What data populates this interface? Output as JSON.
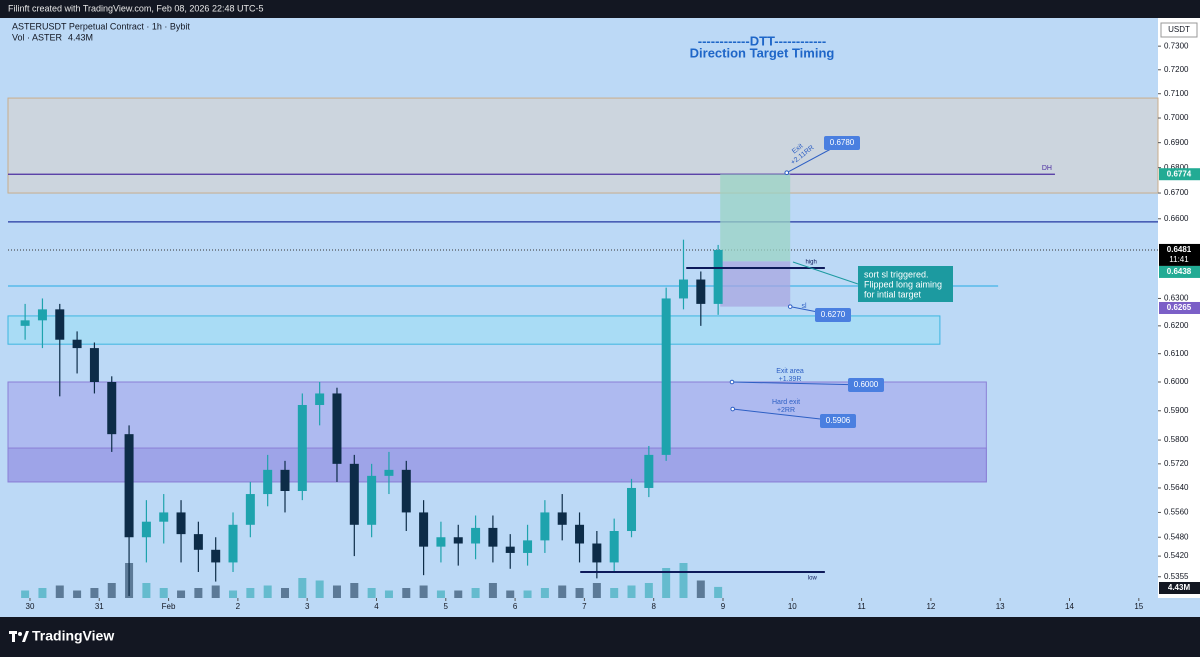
{
  "header": {
    "attribution": "Filinft created with TradingView.com, Feb 08, 2026 22:48 UTC-5"
  },
  "chart_data": {
    "type": "candlestick",
    "title": "ASTERUSDT Perpetual Contract · 1h · Bybit",
    "currency": "USDT",
    "heading": [
      "------------DTT------------",
      "Direction Target Timing"
    ],
    "up_color": "#1ea3ad",
    "down_color": "#0d2c48",
    "background": "#bcd9f6",
    "log_scale": true,
    "x": [
      -0.07,
      0.18,
      0.43,
      0.68,
      0.93,
      1.18,
      1.43,
      1.68,
      1.93,
      2.18,
      2.43,
      2.68,
      2.93,
      3.18,
      3.43,
      3.68,
      3.93,
      4.18,
      4.43,
      4.68,
      4.93,
      5.18,
      5.43,
      5.68,
      5.93,
      6.18,
      6.43,
      6.68,
      6.93,
      7.18,
      7.43,
      7.68,
      7.93,
      8.18,
      8.43,
      8.68,
      8.93,
      9.18,
      9.43,
      9.68,
      9.93
    ],
    "open": [
      0.62,
      0.622,
      0.626,
      0.615,
      0.612,
      0.6,
      0.582,
      0.548,
      0.553,
      0.556,
      0.549,
      0.544,
      0.54,
      0.552,
      0.562,
      0.57,
      0.563,
      0.592,
      0.596,
      0.572,
      0.552,
      0.568,
      0.57,
      0.556,
      0.545,
      0.548,
      0.546,
      0.551,
      0.545,
      0.543,
      0.547,
      0.556,
      0.552,
      0.546,
      0.54,
      0.55,
      0.564,
      0.575,
      0.63,
      0.637,
      0.628
    ],
    "high": [
      0.628,
      0.63,
      0.628,
      0.618,
      0.614,
      0.602,
      0.585,
      0.56,
      0.562,
      0.56,
      0.553,
      0.548,
      0.556,
      0.566,
      0.575,
      0.573,
      0.596,
      0.6,
      0.598,
      0.575,
      0.572,
      0.576,
      0.573,
      0.56,
      0.553,
      0.552,
      0.555,
      0.555,
      0.549,
      0.552,
      0.56,
      0.562,
      0.556,
      0.55,
      0.554,
      0.567,
      0.578,
      0.634,
      0.652,
      0.64,
      0.65
    ],
    "low": [
      0.615,
      0.612,
      0.595,
      0.603,
      0.596,
      0.576,
      0.5295,
      0.54,
      0.546,
      0.54,
      0.537,
      0.534,
      0.537,
      0.548,
      0.558,
      0.556,
      0.56,
      0.585,
      0.566,
      0.542,
      0.548,
      0.562,
      0.55,
      0.536,
      0.54,
      0.539,
      0.541,
      0.54,
      0.538,
      0.539,
      0.543,
      0.547,
      0.54,
      0.535,
      0.537,
      0.548,
      0.561,
      0.573,
      0.626,
      0.62,
      0.624
    ],
    "close": [
      0.622,
      0.626,
      0.615,
      0.612,
      0.6,
      0.582,
      0.548,
      0.553,
      0.556,
      0.549,
      0.544,
      0.54,
      0.552,
      0.562,
      0.57,
      0.563,
      0.592,
      0.596,
      0.572,
      0.552,
      0.568,
      0.57,
      0.556,
      0.545,
      0.548,
      0.546,
      0.551,
      0.545,
      0.543,
      0.547,
      0.556,
      0.552,
      0.546,
      0.54,
      0.55,
      0.564,
      0.575,
      0.63,
      0.637,
      0.628,
      0.6481
    ],
    "volume": {
      "name": "Vol · ASTER",
      "ylim": [
        0,
        40
      ],
      "values": [
        3,
        4,
        5,
        3,
        4,
        6,
        14,
        6,
        4,
        3,
        4,
        5,
        3,
        4,
        5,
        4,
        8,
        7,
        5,
        6,
        4,
        3,
        4,
        5,
        3,
        3,
        4,
        6,
        3,
        3,
        4,
        5,
        4,
        6,
        4,
        5,
        6,
        12,
        14,
        7,
        4.43
      ],
      "value_labels": [
        null,
        null,
        null,
        null,
        null,
        null,
        null,
        null,
        null,
        null,
        null,
        null,
        null,
        null,
        null,
        null,
        null,
        null,
        null,
        null,
        null,
        null,
        null,
        null,
        null,
        null,
        null,
        null,
        null,
        null,
        null,
        null,
        null,
        null,
        null,
        null,
        null,
        null,
        null,
        null,
        "4.43M"
      ]
    },
    "xlim": [
      -0.317,
      16.277
    ],
    "xticks": [
      {
        "value": 0,
        "label": "30"
      },
      {
        "value": 1,
        "label": "31"
      },
      {
        "value": 2,
        "label": "Feb"
      },
      {
        "value": 3,
        "label": "2"
      },
      {
        "value": 4,
        "label": "3"
      },
      {
        "value": 5,
        "label": "4"
      },
      {
        "value": 6,
        "label": "5"
      },
      {
        "value": 7,
        "label": "6"
      },
      {
        "value": 8,
        "label": "7"
      },
      {
        "value": 9,
        "label": "8"
      },
      {
        "value": 10,
        "label": "9"
      },
      {
        "value": 11,
        "label": "10"
      },
      {
        "value": 12,
        "label": "11"
      },
      {
        "value": 13,
        "label": "12"
      },
      {
        "value": 14,
        "label": "13"
      },
      {
        "value": 15,
        "label": "14"
      },
      {
        "value": 16,
        "label": "15"
      }
    ],
    "ylim": [
      0.5289,
      0.7421
    ],
    "yticks": [
      {
        "value": 0.73,
        "label": "0.7300"
      },
      {
        "value": 0.72,
        "label": "0.7200"
      },
      {
        "value": 0.71,
        "label": "0.7100"
      },
      {
        "value": 0.7,
        "label": "0.7000"
      },
      {
        "value": 0.69,
        "label": "0.6900"
      },
      {
        "value": 0.68,
        "label": "0.6800"
      },
      {
        "value": 0.67,
        "label": "0.6700"
      },
      {
        "value": 0.66,
        "label": "0.6600"
      },
      {
        "value": 0.63,
        "label": "0.6300"
      },
      {
        "value": 0.62,
        "label": "0.6200"
      },
      {
        "value": 0.61,
        "label": "0.6100"
      },
      {
        "value": 0.6,
        "label": "0.6000"
      },
      {
        "value": 0.59,
        "label": "0.5900"
      },
      {
        "value": 0.58,
        "label": "0.5800"
      },
      {
        "value": 0.572,
        "label": "0.5720"
      },
      {
        "value": 0.564,
        "label": "0.5640"
      },
      {
        "value": 0.556,
        "label": "0.5560"
      },
      {
        "value": 0.548,
        "label": "0.5480"
      },
      {
        "value": 0.542,
        "label": "0.5420"
      },
      {
        "value": 0.5355,
        "label": "0.5355"
      }
    ],
    "price_labels": [
      {
        "value": 0.6774,
        "label": "0.6774",
        "color": "#22ab94"
      },
      {
        "value": 0.6481,
        "label": "0.6481",
        "sub": "11:41",
        "color": "#000000"
      },
      {
        "value": 0.6438,
        "label": "0.6438",
        "color": "#22ab94"
      },
      {
        "value": 0.6265,
        "label": "0.6265",
        "color": "#7b5fc7"
      }
    ],
    "zones": [
      {
        "from": 0.7082,
        "to": 0.67,
        "x0": -0.317,
        "x1": 16.277,
        "color": "#cfd3d9",
        "border": "#c9ad8c"
      },
      {
        "from": 0.6236,
        "to": 0.6134,
        "x0": -0.317,
        "x1": 13.13,
        "color": "#a6dcf5",
        "border": "#3cb6e0"
      },
      {
        "from": 0.6,
        "to": 0.566,
        "x0": -0.317,
        "x1": 13.8,
        "color": "#abb4ef",
        "border": "#8a7fd6"
      },
      {
        "from": 0.5773,
        "to": 0.566,
        "x0": -0.317,
        "x1": 13.8,
        "color": "#9ba0e6",
        "border": "#8a7fd6"
      }
    ],
    "levels": [
      {
        "value": 0.6774,
        "label": "DH",
        "x1": 14.79,
        "color": "#4b2ea0"
      },
      {
        "value": 0.6588,
        "color": "#2438a0"
      },
      {
        "value": 0.6481,
        "dash": true,
        "color": "#333333"
      },
      {
        "value": 0.6346,
        "x1": 13.97,
        "color": "#42b4e8"
      }
    ],
    "position": {
      "target": 0.6774,
      "entry": 0.6438,
      "stop": 0.627,
      "x0": 9.96,
      "x1": 10.97
    },
    "markers": [
      {
        "label": "high",
        "value": 0.6413,
        "x0": 9.47,
        "x1": 11.47
      },
      {
        "label": "low",
        "value": 0.537,
        "x0": 7.94,
        "x1": 11.47
      }
    ],
    "targets": [
      {
        "note": [
          "Exit",
          "+2.11RR"
        ],
        "value": 0.678,
        "label": "0.6780",
        "x": 10.92
      },
      {
        "note": [
          "sl"
        ],
        "value": 0.627,
        "label": "0.6270",
        "x": 10.97
      },
      {
        "note": [
          "Exit area",
          "+1.39R"
        ],
        "value": 0.6,
        "label": "0.6000",
        "x": 10.13
      },
      {
        "note": [
          "Hard exit",
          "+2RR"
        ],
        "value": 0.5906,
        "label": "0.5906",
        "x": 10.14
      }
    ],
    "comment": [
      "sort sl triggered.",
      "Flipped long  aiming",
      "for intial target"
    ]
  },
  "footer": {
    "brand": "TradingView"
  }
}
